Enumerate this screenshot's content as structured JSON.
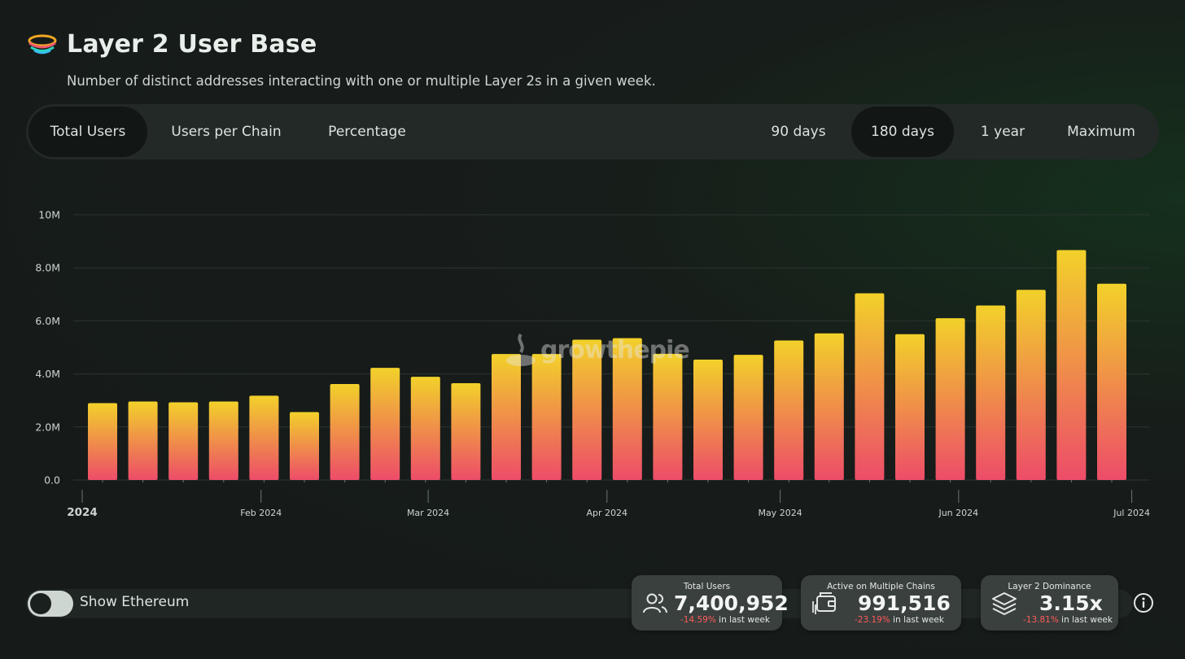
{
  "header": {
    "title": "Layer 2 User Base",
    "subtitle": "Number of distinct addresses interacting with one or multiple Layer 2s in a given week."
  },
  "toolbar": {
    "views": [
      {
        "label": "Total Users",
        "active": true
      },
      {
        "label": "Users per Chain",
        "active": false
      },
      {
        "label": "Percentage",
        "active": false
      }
    ],
    "ranges": [
      {
        "label": "90 days",
        "active": false
      },
      {
        "label": "180 days",
        "active": true
      },
      {
        "label": "1 year",
        "active": false
      },
      {
        "label": "Maximum",
        "active": false
      }
    ]
  },
  "watermark": "growthepie",
  "chart_data": {
    "type": "bar",
    "title": "",
    "xlabel": "",
    "ylabel": "",
    "ylim": [
      0,
      10000000
    ],
    "yticks": [
      {
        "value": 0,
        "label": "0.0"
      },
      {
        "value": 2000000,
        "label": "2.0M"
      },
      {
        "value": 4000000,
        "label": "4.0M"
      },
      {
        "value": 6000000,
        "label": "6.0M"
      },
      {
        "value": 8000000,
        "label": "8.0M"
      },
      {
        "value": 10000000,
        "label": "10M"
      }
    ],
    "grid": true,
    "categories": [
      "2024-01-01",
      "2024-01-08",
      "2024-01-15",
      "2024-01-22",
      "2024-01-29",
      "2024-02-05",
      "2024-02-12",
      "2024-02-19",
      "2024-02-26",
      "2024-03-04",
      "2024-03-11",
      "2024-03-18",
      "2024-03-25",
      "2024-04-01",
      "2024-04-08",
      "2024-04-15",
      "2024-04-22",
      "2024-04-29",
      "2024-05-06",
      "2024-05-13",
      "2024-05-20",
      "2024-05-27",
      "2024-06-03",
      "2024-06-10",
      "2024-06-17",
      "2024-06-24"
    ],
    "values": [
      2900000,
      2960000,
      2930000,
      2960000,
      3180000,
      2560000,
      3620000,
      4230000,
      3890000,
      3650000,
      4750000,
      4750000,
      5290000,
      5350000,
      4760000,
      4540000,
      4720000,
      5260000,
      5530000,
      7040000,
      5500000,
      6100000,
      6580000,
      7170000,
      8670000,
      7400952
    ],
    "xaxis_labels": [
      {
        "label": "2024",
        "bold": true,
        "index": 0
      },
      {
        "label": "Feb 2024",
        "bold": false,
        "index": 4.43
      },
      {
        "label": "Mar 2024",
        "bold": false,
        "index": 8.57
      },
      {
        "label": "Apr 2024",
        "bold": false,
        "index": 13
      },
      {
        "label": "May 2024",
        "bold": false,
        "index": 17.29
      },
      {
        "label": "Jun 2024",
        "bold": false,
        "index": 21.71
      },
      {
        "label": "Jul 2024",
        "bold": false,
        "index": 26
      }
    ],
    "bar_gradient": {
      "top": "#f2d12a",
      "bottom": "#ed4c69"
    }
  },
  "toggle": {
    "label": "Show Ethereum",
    "on": false
  },
  "cards": [
    {
      "label": "Total Users",
      "icon": "users-icon",
      "value": "7,400,952",
      "change": "-14.59%",
      "change_suffix": " in last week"
    },
    {
      "label": "Active on Multiple Chains",
      "icon": "wallet-icon",
      "value": "991,516",
      "change": "-23.19%",
      "change_suffix": " in last week"
    },
    {
      "label": "Layer 2 Dominance",
      "icon": "layers-icon",
      "value": "3.15x",
      "change": "-13.81%",
      "change_suffix": " in last week"
    }
  ],
  "colors": {
    "negative": "#ff5a5a",
    "active_tab": "#121614",
    "toolbar": "#222927"
  }
}
